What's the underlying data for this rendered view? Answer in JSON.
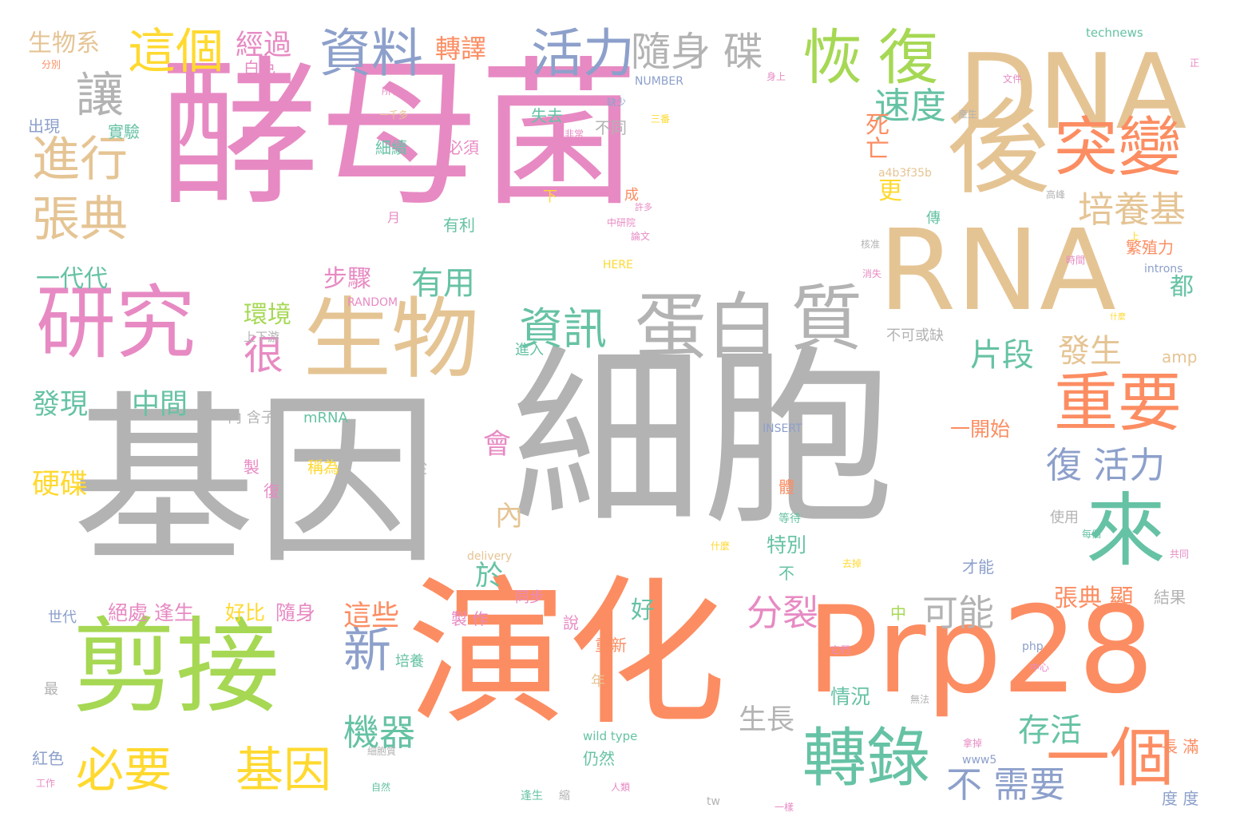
{
  "colors": {
    "background": "#ffffff",
    "gray": "#b3b3b3",
    "pink": "#e78ac3",
    "tan": "#e5c494",
    "orange": "#fc8d62",
    "green": "#a6d854",
    "teal": "#66c2a5",
    "blue": "#8da0cb",
    "yellow": "#ffd92f"
  },
  "words": [
    {
      "text": "細胞",
      "color": "gray"
    },
    {
      "text": "基因",
      "color": "gray"
    },
    {
      "text": "酵母菌",
      "color": "pink"
    },
    {
      "text": "演化",
      "color": "orange"
    },
    {
      "text": "Prp28",
      "color": "orange"
    },
    {
      "text": "RNA",
      "color": "tan"
    },
    {
      "text": "DNA",
      "color": "tan"
    },
    {
      "text": "後",
      "color": "tan"
    },
    {
      "text": "剪接",
      "color": "green"
    },
    {
      "text": "生物",
      "color": "tan"
    },
    {
      "text": "研究",
      "color": "pink"
    },
    {
      "text": "蛋白",
      "color": "gray"
    },
    {
      "text": "質",
      "color": "gray"
    },
    {
      "text": "來",
      "color": "teal"
    },
    {
      "text": "突變",
      "color": "orange"
    },
    {
      "text": "重要",
      "color": "orange"
    },
    {
      "text": "一個",
      "color": "orange"
    },
    {
      "text": "轉錄",
      "color": "teal"
    },
    {
      "text": "恢",
      "color": "green"
    },
    {
      "text": "復",
      "color": "green"
    },
    {
      "text": "資料",
      "color": "blue"
    },
    {
      "text": "活力",
      "color": "blue"
    },
    {
      "text": "這個",
      "color": "yellow"
    },
    {
      "text": "進行",
      "color": "tan"
    },
    {
      "text": "張典",
      "color": "tan"
    },
    {
      "text": "讓",
      "color": "gray"
    },
    {
      "text": "資訊",
      "color": "teal"
    },
    {
      "text": "必要",
      "color": "yellow"
    },
    {
      "text": "基因",
      "color": "yellow"
    },
    {
      "text": "新",
      "color": "blue"
    },
    {
      "text": "很",
      "color": "pink"
    },
    {
      "text": "隨身 碟",
      "color": "gray"
    },
    {
      "text": "速度",
      "color": "teal"
    },
    {
      "text": "培養基",
      "color": "tan"
    },
    {
      "text": "復 活力",
      "color": "blue"
    },
    {
      "text": "經過",
      "color": "pink"
    },
    {
      "text": "轉譯",
      "color": "orange"
    },
    {
      "text": "生物系",
      "color": "tan"
    },
    {
      "text": "一代代",
      "color": "teal"
    },
    {
      "text": "步驟",
      "color": "pink"
    },
    {
      "text": "有用",
      "color": "teal"
    },
    {
      "text": "片段",
      "color": "teal"
    },
    {
      "text": "發生",
      "color": "tan"
    },
    {
      "text": "可能",
      "color": "gray"
    },
    {
      "text": "分裂",
      "color": "pink"
    },
    {
      "text": "機器",
      "color": "teal"
    },
    {
      "text": "存活",
      "color": "teal"
    },
    {
      "text": "不 需要",
      "color": "blue"
    },
    {
      "text": "硬碟",
      "color": "yellow"
    },
    {
      "text": "發現",
      "color": "teal"
    },
    {
      "text": "中間",
      "color": "teal"
    },
    {
      "text": "環境",
      "color": "green"
    },
    {
      "text": "死亡",
      "color": "orange"
    },
    {
      "text": "更",
      "color": "yellow"
    },
    {
      "text": "都",
      "color": "teal"
    },
    {
      "text": "這些",
      "color": "orange"
    },
    {
      "text": "生長",
      "color": "gray"
    },
    {
      "text": "會",
      "color": "pink"
    },
    {
      "text": "內",
      "color": "tan"
    },
    {
      "text": "於",
      "color": "teal"
    },
    {
      "text": "好",
      "color": "teal"
    },
    {
      "text": "張典 顯",
      "color": "orange"
    },
    {
      "text": "繁殖力",
      "color": "orange"
    },
    {
      "text": "情況",
      "color": "teal"
    },
    {
      "text": "絕處 逢生",
      "color": "pink"
    },
    {
      "text": "好比",
      "color": "yellow"
    },
    {
      "text": "隨身",
      "color": "pink"
    },
    {
      "text": "一開始",
      "color": "orange"
    },
    {
      "text": "特別",
      "color": "teal"
    },
    {
      "text": "長 滿",
      "color": "orange"
    },
    {
      "text": "度 度",
      "color": "blue"
    },
    {
      "text": "出現",
      "color": "blue"
    },
    {
      "text": "白色",
      "color": "pink"
    },
    {
      "text": "實驗",
      "color": "teal"
    },
    {
      "text": "失去",
      "color": "teal"
    },
    {
      "text": "不同",
      "color": "gray"
    },
    {
      "text": "細續",
      "color": "teal"
    },
    {
      "text": "必須",
      "color": "pink"
    },
    {
      "text": "有利",
      "color": "teal"
    },
    {
      "text": "製 作",
      "color": "pink"
    },
    {
      "text": "結果",
      "color": "gray"
    },
    {
      "text": "世代",
      "color": "blue"
    },
    {
      "text": "內 含子",
      "color": "gray"
    },
    {
      "text": "mRNA",
      "color": "teal"
    },
    {
      "text": "稱為",
      "color": "yellow"
    },
    {
      "text": "從",
      "color": "gray"
    },
    {
      "text": "紅色",
      "color": "blue"
    },
    {
      "text": "仍然",
      "color": "teal"
    },
    {
      "text": "才能",
      "color": "blue"
    },
    {
      "text": "使用",
      "color": "gray"
    },
    {
      "text": "年",
      "color": "tan"
    },
    {
      "text": "重新",
      "color": "orange"
    },
    {
      "text": "同步",
      "color": "pink"
    },
    {
      "text": "培養",
      "color": "teal"
    },
    {
      "text": "進入",
      "color": "teal"
    },
    {
      "text": "上下游",
      "color": "gray"
    },
    {
      "text": "不可或缺",
      "color": "gray"
    },
    {
      "text": "amp",
      "color": "tan"
    },
    {
      "text": "introns",
      "color": "blue"
    },
    {
      "text": "technews",
      "color": "teal"
    },
    {
      "text": "NUMBER",
      "color": "blue"
    },
    {
      "text": "RANDOM",
      "color": "pink"
    },
    {
      "text": "INSERT",
      "color": "blue"
    },
    {
      "text": "HERE",
      "color": "yellow"
    },
    {
      "text": "a4b3f35b",
      "color": "tan"
    },
    {
      "text": "delivery",
      "color": "tan"
    },
    {
      "text": "wild type",
      "color": "teal"
    },
    {
      "text": "php",
      "color": "blue"
    },
    {
      "text": "www5",
      "color": "blue"
    },
    {
      "text": "tw",
      "color": "gray"
    },
    {
      "text": "月",
      "color": "pink"
    },
    {
      "text": "傳",
      "color": "teal"
    },
    {
      "text": "下",
      "color": "yellow"
    },
    {
      "text": "成",
      "color": "orange"
    },
    {
      "text": "中",
      "color": "green"
    },
    {
      "text": "說",
      "color": "pink"
    },
    {
      "text": "製",
      "color": "pink"
    },
    {
      "text": "復",
      "color": "pink"
    },
    {
      "text": "不",
      "color": "teal"
    },
    {
      "text": "體",
      "color": "orange"
    },
    {
      "text": "最",
      "color": "gray"
    },
    {
      "text": "分別",
      "color": "orange"
    },
    {
      "text": "所有",
      "color": "pink"
    },
    {
      "text": "文件",
      "color": "pink"
    },
    {
      "text": "正",
      "color": "pink"
    },
    {
      "text": "身上",
      "color": "pink"
    },
    {
      "text": "缺少",
      "color": "blue"
    },
    {
      "text": "三番",
      "color": "yellow"
    },
    {
      "text": "產生",
      "color": "gray"
    },
    {
      "text": "一千多",
      "color": "tan"
    },
    {
      "text": "非常",
      "color": "pink"
    },
    {
      "text": "許多",
      "color": "pink"
    },
    {
      "text": "中研院",
      "color": "pink"
    },
    {
      "text": "論文",
      "color": "pink"
    },
    {
      "text": "高峰",
      "color": "gray"
    },
    {
      "text": "時間",
      "color": "pink"
    },
    {
      "text": "上",
      "color": "yellow"
    },
    {
      "text": "核准",
      "color": "gray"
    },
    {
      "text": "消失",
      "color": "pink"
    },
    {
      "text": "它們",
      "color": "pink"
    },
    {
      "text": "中心",
      "color": "pink"
    },
    {
      "text": "無法",
      "color": "gray"
    },
    {
      "text": "拿掉",
      "color": "pink"
    },
    {
      "text": "一樣",
      "color": "pink"
    },
    {
      "text": "人類",
      "color": "pink"
    },
    {
      "text": "逢生",
      "color": "teal"
    },
    {
      "text": "縮",
      "color": "gray"
    },
    {
      "text": "工作",
      "color": "pink"
    },
    {
      "text": "自然",
      "color": "teal"
    },
    {
      "text": "細胞質",
      "color": "gray"
    },
    {
      "text": "每個",
      "color": "teal"
    },
    {
      "text": "共同",
      "color": "pink"
    },
    {
      "text": "去掉",
      "color": "yellow"
    },
    {
      "text": "等待",
      "color": "teal"
    },
    {
      "text": "什麼",
      "color": "yellow"
    },
    {
      "text": "什麼",
      "color": "yellow"
    }
  ]
}
